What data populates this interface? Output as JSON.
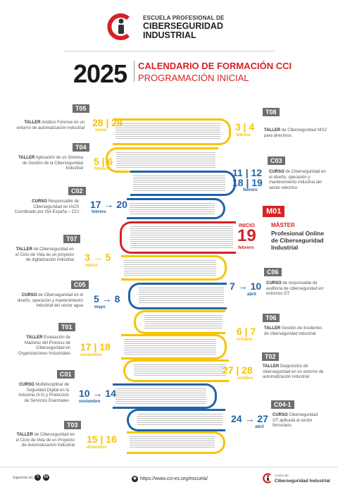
{
  "header": {
    "org_line1": "ESCUELA PROFESIONAL DE",
    "org_line2": "CIBERSEGURIDAD",
    "org_line3": "INDUSTRIAL",
    "year": "2025",
    "title": "CALENDARIO DE FORMACIÓN CCI",
    "subtitle": "PROGRAMACIÓN INICIAL"
  },
  "colors": {
    "yellow": "#f7c400",
    "blue": "#1f63a8",
    "red": "#d62226",
    "gray_tag": "#6e6e6e"
  },
  "items": [
    {
      "code": "T05",
      "type": "TALLER",
      "text": "Análisis Forense en un entorno de automatización industrial",
      "dates": "28 | 29",
      "month": "enero"
    },
    {
      "code": "T08",
      "type": "TALLER",
      "text": "de Ciberseguridad NIS2 para directivos",
      "dates": "3 | 4",
      "month": "febrero"
    },
    {
      "code": "T04",
      "type": "TALLER",
      "text": "Aplicación de un Sistema de Gestión de la Ciberseguridad Industrial",
      "dates": "5 | 6",
      "month": "febrero"
    },
    {
      "code": "C03",
      "type": "CURSO",
      "text": "de Ciberseguridad en el diseño, operación y mantenimiento industrial del sector eléctrico",
      "dates": "11 | 12",
      "dates2": "18 | 19",
      "month": "febrero"
    },
    {
      "code": "C02",
      "type": "CURSO",
      "text": "Responsable de Ciberseguridad en IACS Coordinado por ISA España – CCI",
      "dates": "17 → 20",
      "month": "febrero"
    },
    {
      "code": "M01",
      "type": "MÁSTER",
      "text": "Profesional Online de Ciberseguridad Industrial",
      "prefix": "INICIO",
      "dates": "19",
      "month": "febrero"
    },
    {
      "code": "T07",
      "type": "TALLER",
      "text": "de Ciberseguridad en el Ciclo de Vida de un proyecto de digitalización industrial",
      "dates": "3 → 5",
      "month": "marzo"
    },
    {
      "code": "C06",
      "type": "CURSO",
      "text": "de responsable de auditoría de ciberseguridad en entornos OT",
      "dates": "7 → 10",
      "month": "abril"
    },
    {
      "code": "C05",
      "type": "CURSO",
      "text": "de Ciberseguridad en el diseño, operación y mantenimiento industrial del sector agua",
      "dates": "5 → 8",
      "month": "mayo"
    },
    {
      "code": "T06",
      "type": "TALLER",
      "text": "Gestión de incidentes de ciberseguridad industrial",
      "dates": "6 | 7",
      "month": "octubre"
    },
    {
      "code": "T01",
      "type": "TALLER",
      "text": "Evaluación de Madurez del Proceso de Ciberseguridad en Organizaciones Industriales",
      "dates": "17 | 18",
      "month": "noviembre"
    },
    {
      "code": "T02",
      "type": "TALLER",
      "text": "Diagnóstico de ciberseguridad en un entorno de automatización industrial",
      "dates": "27 | 28",
      "month": "octubre"
    },
    {
      "code": "C01",
      "type": "CURSO",
      "text": "Multidisciplinar de Seguridad Digital en la Industria (4.0) y Protección de Servicios Esenciales",
      "dates": "10 → 14",
      "month": "noviembre"
    },
    {
      "code": "C04-1",
      "type": "CURSO",
      "text": "Ciberseguridad OT aplicada al sector ferroviario",
      "dates": "24 → 27",
      "month": "abril"
    },
    {
      "code": "T03",
      "type": "TALLER",
      "text": "de Ciberseguridad en el Ciclo de Vida de un Proyecto de Automatización Industrial",
      "dates": "15 | 16",
      "month": "diciembre"
    }
  ],
  "footer": {
    "follow": "Síguenos en:",
    "x_icon": "x-icon",
    "linkedin_icon": "linkedin-icon",
    "url": "https://www.cci-es.org/escuela/",
    "logo_small": "Centro de",
    "logo_big": "Ciberseguridad Industrial"
  }
}
